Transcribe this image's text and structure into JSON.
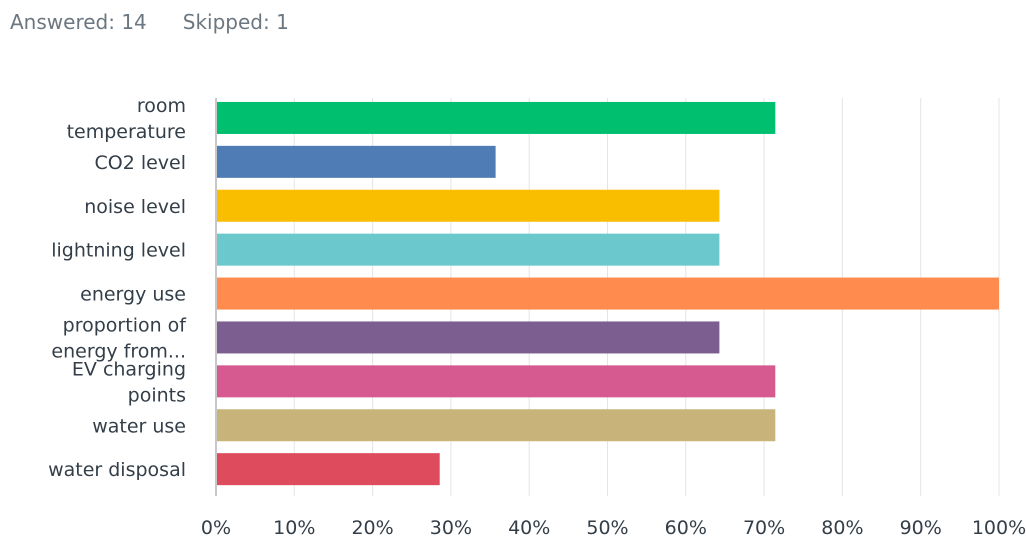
{
  "summary": {
    "answered": "Answered: 14",
    "skipped": "Skipped: 1"
  },
  "chart_data": {
    "type": "bar",
    "orientation": "horizontal",
    "title": "",
    "xlabel": "",
    "ylabel": "",
    "xlim": [
      0,
      100
    ],
    "grid": true,
    "categories": [
      [
        "room",
        "temperature"
      ],
      [
        "CO2 level"
      ],
      [
        "noise level"
      ],
      [
        "lightning level"
      ],
      [
        "energy use"
      ],
      [
        "proportion of",
        "energy from..."
      ],
      [
        "EV charging",
        "points"
      ],
      [
        "water use"
      ],
      [
        "water disposal"
      ]
    ],
    "values": [
      71.43,
      35.71,
      64.29,
      64.29,
      100,
      64.29,
      71.43,
      71.43,
      28.57
    ],
    "colors": [
      "#00bf6f",
      "#507cb6",
      "#f9be00",
      "#6bc8cd",
      "#ff8b4f",
      "#7d5e90",
      "#d65a90",
      "#c8b47a",
      "#dd4b5c"
    ],
    "ticks": [
      "0%",
      "10%",
      "20%",
      "30%",
      "40%",
      "50%",
      "60%",
      "70%",
      "80%",
      "90%",
      "100%"
    ],
    "gridline_color": "#e4e4e4",
    "axis_color": "#c8c8c8"
  }
}
